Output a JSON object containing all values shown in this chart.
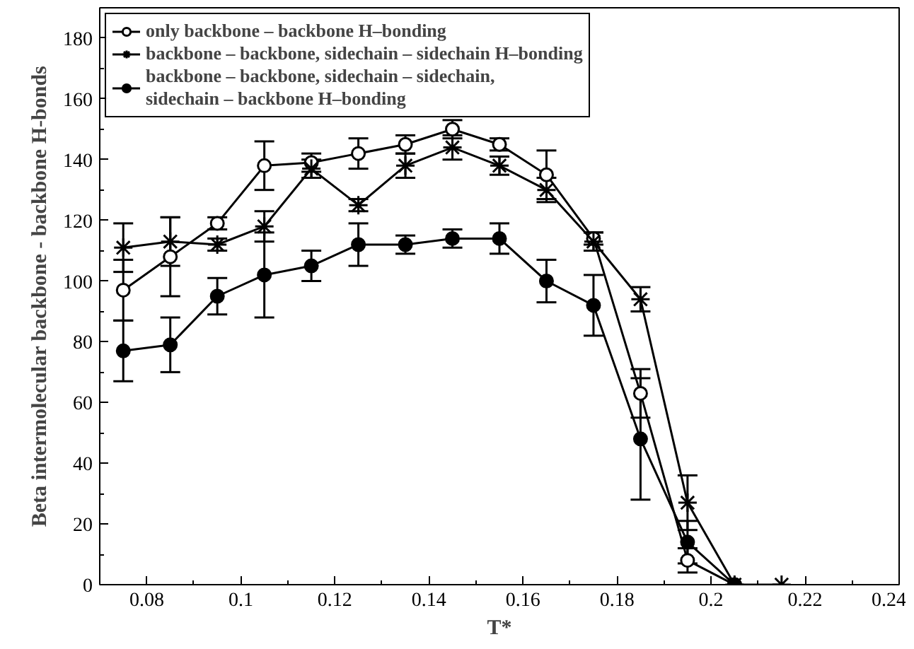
{
  "chart_data": {
    "type": "line",
    "xlabel": "T*",
    "ylabel": "Beta intermolecular backbone - backbone H-bonds",
    "xlim": [
      0.07,
      0.24
    ],
    "xticks": [
      0.08,
      0.1,
      0.12,
      0.14,
      0.16,
      0.18,
      0.2,
      0.22,
      0.24
    ],
    "ylim": [
      0,
      190
    ],
    "yticks": [
      0,
      20,
      40,
      60,
      80,
      100,
      120,
      140,
      160,
      180
    ],
    "grid": false,
    "legend": "top_left",
    "line_style": "solid",
    "series": [
      {
        "name": "only backbone – backbone H–bonding",
        "color": "#000000",
        "marker": "open_circle",
        "x": [
          0.075,
          0.085,
          0.095,
          0.105,
          0.115,
          0.125,
          0.135,
          0.145,
          0.155,
          0.165,
          0.175,
          0.185,
          0.195,
          0.205
        ],
        "values": [
          97,
          108,
          119,
          138,
          139,
          142,
          145,
          150,
          145,
          135,
          114,
          63,
          8,
          0
        ],
        "errors": [
          10,
          13,
          2,
          8,
          3,
          5,
          3,
          3,
          2,
          8,
          2,
          8,
          4,
          null
        ]
      },
      {
        "name": "backbone – backbone, sidechain – sidechain H–bonding",
        "color": "#000000",
        "marker": "cross",
        "x": [
          0.075,
          0.085,
          0.095,
          0.105,
          0.115,
          0.125,
          0.135,
          0.145,
          0.155,
          0.165,
          0.175,
          0.185,
          0.195,
          0.205,
          0.215
        ],
        "values": [
          111,
          113,
          112,
          118,
          137,
          125,
          138,
          144,
          138,
          130,
          113,
          94,
          27,
          0,
          0
        ],
        "errors": [
          8,
          8,
          2,
          5,
          3,
          2,
          4,
          4,
          3,
          4,
          3,
          4,
          9,
          null,
          null
        ]
      },
      {
        "name": "backbone – backbone, sidechain – sidechain,\nsidechain – backbone H–bonding",
        "color": "#000000",
        "marker": "circle",
        "x": [
          0.075,
          0.085,
          0.095,
          0.105,
          0.115,
          0.125,
          0.135,
          0.145,
          0.155,
          0.165,
          0.175,
          0.185,
          0.195,
          0.205
        ],
        "values": [
          77,
          79,
          95,
          102,
          105,
          112,
          112,
          114,
          114,
          100,
          92,
          48,
          14,
          0
        ],
        "errors": [
          10,
          9,
          6,
          14,
          5,
          7,
          3,
          3,
          5,
          7,
          10,
          20,
          7,
          null
        ]
      }
    ]
  }
}
